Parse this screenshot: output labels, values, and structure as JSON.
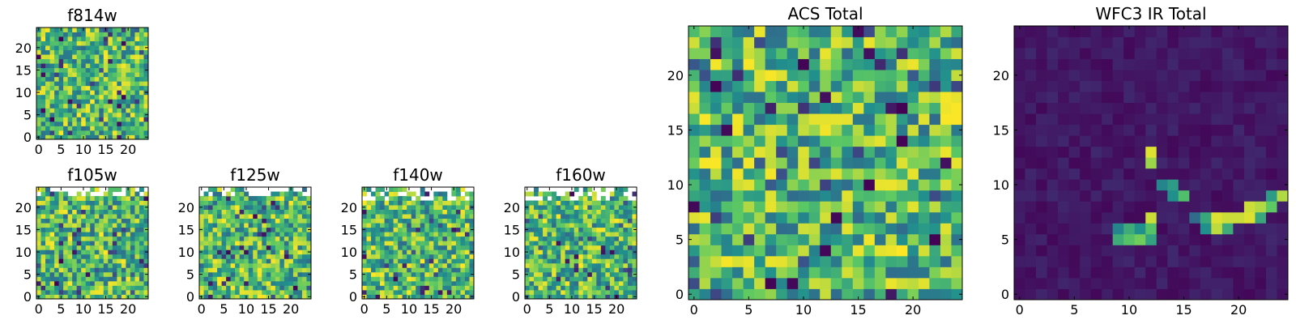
{
  "figure": {
    "colormap": [
      "#440154",
      "#3b528b",
      "#21908d",
      "#5dc963",
      "#fde725"
    ],
    "background": "#ffffff",
    "frame_color": "#000000"
  },
  "chart_data": [
    {
      "id": "f814w",
      "type": "heatmap",
      "title": "f814w",
      "grid": [
        25,
        25
      ],
      "xlim": [
        0,
        25
      ],
      "ylim": [
        0,
        25
      ],
      "xticks": [
        0,
        5,
        10,
        15,
        20
      ],
      "yticks": [
        0,
        5,
        10,
        15,
        20
      ],
      "pattern": "noise",
      "seed": 11,
      "vmin": 0,
      "vmax": 1
    },
    {
      "id": "f105w",
      "type": "heatmap",
      "title": "f105w",
      "grid": [
        25,
        25
      ],
      "xlim": [
        0,
        25
      ],
      "ylim": [
        0,
        25
      ],
      "xticks": [
        0,
        5,
        10,
        15,
        20
      ],
      "yticks": [
        0,
        5,
        10,
        15,
        20
      ],
      "pattern": "noise",
      "seed": 23,
      "masked_top_rows": 2,
      "vmin": 0,
      "vmax": 1
    },
    {
      "id": "f125w",
      "type": "heatmap",
      "title": "f125w",
      "grid": [
        25,
        25
      ],
      "xlim": [
        0,
        25
      ],
      "ylim": [
        0,
        25
      ],
      "xticks": [
        0,
        5,
        10,
        15,
        20
      ],
      "yticks": [
        0,
        5,
        10,
        15,
        20
      ],
      "pattern": "noise",
      "seed": 37,
      "masked_top_rows": 2,
      "vmin": 0,
      "vmax": 1
    },
    {
      "id": "f140w",
      "type": "heatmap",
      "title": "f140w",
      "grid": [
        25,
        25
      ],
      "xlim": [
        0,
        25
      ],
      "ylim": [
        0,
        25
      ],
      "xticks": [
        0,
        5,
        10,
        15,
        20
      ],
      "yticks": [
        0,
        5,
        10,
        15,
        20
      ],
      "pattern": "noise",
      "seed": 41,
      "masked_top_rows": 3,
      "vmin": 0,
      "vmax": 1
    },
    {
      "id": "f160w",
      "type": "heatmap",
      "title": "f160w",
      "grid": [
        25,
        25
      ],
      "xlim": [
        0,
        25
      ],
      "ylim": [
        0,
        25
      ],
      "xticks": [
        0,
        5,
        10,
        15,
        20
      ],
      "yticks": [
        0,
        5,
        10,
        15,
        20
      ],
      "pattern": "noise",
      "seed": 53,
      "masked_top_rows": 3,
      "vmin": 0,
      "vmax": 1
    },
    {
      "id": "acs-total",
      "type": "heatmap",
      "title": "ACS Total",
      "grid": [
        25,
        25
      ],
      "xlim": [
        0,
        25
      ],
      "ylim": [
        0,
        25
      ],
      "xticks": [
        0,
        5,
        10,
        15,
        20
      ],
      "yticks": [
        0,
        5,
        10,
        15,
        20
      ],
      "pattern": "noise",
      "seed": 67,
      "vmin": 0,
      "vmax": 1,
      "bright_cells": [
        [
          23,
          16
        ],
        [
          24,
          16
        ],
        [
          23,
          17
        ],
        [
          24,
          17
        ],
        [
          23,
          18
        ],
        [
          24,
          18
        ],
        [
          6,
          20
        ],
        [
          7,
          20
        ],
        [
          8,
          20
        ],
        [
          0,
          7
        ],
        [
          1,
          7
        ],
        [
          18,
          4
        ],
        [
          17,
          4
        ],
        [
          13,
          16
        ],
        [
          14,
          16
        ],
        [
          21,
          16
        ]
      ],
      "dark_cells": [
        [
          3,
          15
        ],
        [
          10,
          21
        ],
        [
          16,
          22
        ],
        [
          13,
          7
        ],
        [
          12,
          4
        ],
        [
          7,
          1
        ],
        [
          19,
          14
        ],
        [
          23,
          12
        ],
        [
          2,
          19
        ]
      ]
    },
    {
      "id": "wfc3-ir-total",
      "type": "heatmap",
      "title": "WFC3 IR Total",
      "grid": [
        25,
        25
      ],
      "xlim": [
        0,
        25
      ],
      "ylim": [
        0,
        25
      ],
      "xticks": [
        0,
        5,
        10,
        15,
        20
      ],
      "yticks": [
        0,
        5,
        10,
        15,
        20
      ],
      "pattern": "sources",
      "seed": 79,
      "vmin": 0,
      "vmax": 1,
      "source_cells": [
        [
          12,
          13,
          0.95
        ],
        [
          12,
          12,
          0.85
        ],
        [
          13,
          10,
          0.45
        ],
        [
          14,
          10,
          0.55
        ],
        [
          15,
          9,
          0.7
        ],
        [
          14,
          9,
          0.5
        ],
        [
          12,
          7,
          0.92
        ],
        [
          12,
          6,
          0.72
        ],
        [
          11,
          6,
          0.5
        ],
        [
          10,
          6,
          0.62
        ],
        [
          9,
          6,
          0.45
        ],
        [
          9,
          5,
          0.62
        ],
        [
          10,
          5,
          0.72
        ],
        [
          11,
          5,
          0.78
        ],
        [
          12,
          5,
          0.58
        ],
        [
          18,
          7,
          0.95
        ],
        [
          19,
          7,
          0.92
        ],
        [
          20,
          7,
          0.92
        ],
        [
          21,
          7,
          0.95
        ],
        [
          21,
          8,
          0.92
        ],
        [
          22,
          8,
          0.88
        ],
        [
          23,
          8,
          0.75
        ],
        [
          24,
          9,
          0.88
        ],
        [
          23,
          9,
          0.55
        ],
        [
          18,
          6,
          0.9
        ],
        [
          19,
          6,
          0.62
        ],
        [
          17,
          7,
          0.6
        ],
        [
          17,
          6,
          0.5
        ],
        [
          22,
          7,
          0.6
        ],
        [
          16,
          7,
          0.35
        ]
      ]
    }
  ]
}
